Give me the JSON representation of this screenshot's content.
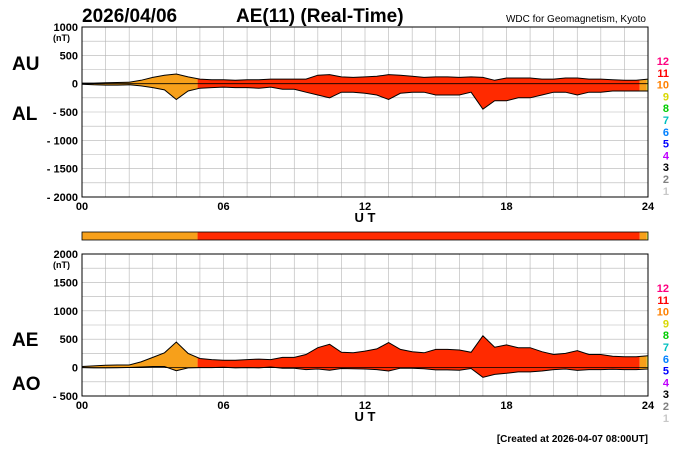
{
  "header": {
    "date": "2026/04/06",
    "title": "AE(11) (Real-Time)",
    "source": "WDC for Geomagnetism, Kyoto"
  },
  "footer": {
    "created": "[Created at 2026-04-07 08:00UT]"
  },
  "station_colors": [
    "#ff0080",
    "#ff0000",
    "#ff8000",
    "#d8d800",
    "#00cc00",
    "#00c0c0",
    "#0080ff",
    "#0000ff",
    "#c000ff",
    "#000000",
    "#808080",
    "#c8c8c8"
  ],
  "chart_data": [
    {
      "type": "area",
      "panel": "AU/AL",
      "label_upper": "AU",
      "label_lower": "AL",
      "ylabel_unit": "(nT)",
      "xlabel": "U T",
      "x_ticks": [
        "00",
        "06",
        "12",
        "18",
        "24"
      ],
      "y_ticks": [
        "1000",
        "500",
        "0",
        "- 500",
        "- 1000",
        "- 1500",
        "- 2000"
      ],
      "y_tick_values": [
        1000,
        500,
        0,
        -500,
        -1000,
        -1500,
        -2000
      ],
      "ylim": [
        -2000,
        1000
      ],
      "xlim": [
        0,
        24
      ],
      "grid": true,
      "station_count_scale": [
        "12",
        "11",
        "10",
        "9",
        "8",
        "7",
        "6",
        "5",
        "4",
        "3",
        "2",
        "1"
      ],
      "hours": [
        0,
        0.5,
        1,
        1.5,
        2,
        2.5,
        3,
        3.5,
        4,
        4.5,
        5,
        5.5,
        6,
        6.5,
        7,
        7.5,
        8,
        8.5,
        9,
        9.5,
        10,
        10.5,
        11,
        11.5,
        12,
        12.5,
        13,
        13.5,
        14,
        14.5,
        15,
        15.5,
        16,
        16.5,
        17,
        17.5,
        18,
        18.5,
        19,
        19.5,
        20,
        20.5,
        21,
        21.5,
        22,
        22.5,
        23,
        23.5,
        24
      ],
      "series": [
        {
          "name": "AU",
          "values": [
            10,
            10,
            15,
            20,
            25,
            60,
            110,
            150,
            170,
            120,
            80,
            70,
            70,
            60,
            70,
            70,
            80,
            80,
            80,
            80,
            150,
            160,
            120,
            110,
            120,
            130,
            160,
            150,
            130,
            110,
            120,
            120,
            110,
            120,
            110,
            60,
            100,
            100,
            100,
            80,
            80,
            100,
            100,
            80,
            80,
            70,
            60,
            60,
            80
          ]
        },
        {
          "name": "AL",
          "values": [
            -10,
            -20,
            -25,
            -25,
            -20,
            -40,
            -70,
            -110,
            -280,
            -130,
            -80,
            -70,
            -60,
            -70,
            -70,
            -80,
            -60,
            -100,
            -100,
            -150,
            -200,
            -250,
            -150,
            -150,
            -170,
            -200,
            -280,
            -170,
            -150,
            -150,
            -200,
            -200,
            -200,
            -150,
            -450,
            -300,
            -300,
            -250,
            -250,
            -200,
            -150,
            -150,
            -200,
            -150,
            -150,
            -130,
            -130,
            -130,
            -130
          ]
        }
      ],
      "segments": [
        {
          "from": 0,
          "to": 4.9,
          "color": "#f7a01a",
          "stations": "10"
        },
        {
          "from": 4.9,
          "to": 23.65,
          "color": "#ff2a00",
          "stations": "11"
        },
        {
          "from": 23.65,
          "to": 23.95,
          "color": "#f7a01a",
          "stations": "10"
        },
        {
          "from": 23.95,
          "to": 24,
          "color": "#c8e640",
          "stations": "9"
        }
      ]
    },
    {
      "type": "area",
      "panel": "AE/AO",
      "label_upper": "AE",
      "label_lower": "AO",
      "ylabel_unit": "(nT)",
      "xlabel": "U T",
      "x_ticks": [
        "00",
        "06",
        "12",
        "18",
        "24"
      ],
      "y_ticks": [
        "2000",
        "1500",
        "1000",
        "500",
        "0",
        "- 500"
      ],
      "y_tick_values": [
        2000,
        1500,
        1000,
        500,
        0,
        -500
      ],
      "ylim": [
        -500,
        2000
      ],
      "xlim": [
        0,
        24
      ],
      "grid": true,
      "station_count_scale": [
        "12",
        "11",
        "10",
        "9",
        "8",
        "7",
        "6",
        "5",
        "4",
        "3",
        "2",
        "1"
      ],
      "hours": [
        0,
        0.5,
        1,
        1.5,
        2,
        2.5,
        3,
        3.5,
        4,
        4.5,
        5,
        5.5,
        6,
        6.5,
        7,
        7.5,
        8,
        8.5,
        9,
        9.5,
        10,
        10.5,
        11,
        11.5,
        12,
        12.5,
        13,
        13.5,
        14,
        14.5,
        15,
        15.5,
        16,
        16.5,
        17,
        17.5,
        18,
        18.5,
        19,
        19.5,
        20,
        20.5,
        21,
        21.5,
        22,
        22.5,
        23,
        23.5,
        24
      ],
      "series": [
        {
          "name": "AE",
          "values": [
            20,
            30,
            40,
            45,
            45,
            100,
            180,
            260,
            450,
            250,
            160,
            140,
            130,
            130,
            140,
            150,
            140,
            180,
            180,
            230,
            350,
            410,
            270,
            260,
            290,
            330,
            440,
            320,
            280,
            260,
            320,
            320,
            310,
            270,
            560,
            360,
            400,
            350,
            350,
            280,
            230,
            250,
            300,
            230,
            230,
            200,
            190,
            190,
            210
          ]
        },
        {
          "name": "AO",
          "values": [
            0,
            -5,
            -5,
            -2,
            2,
            10,
            20,
            20,
            -55,
            -5,
            0,
            0,
            5,
            -5,
            0,
            -5,
            10,
            -10,
            -10,
            -35,
            -25,
            -45,
            -15,
            -20,
            -25,
            -35,
            -60,
            -10,
            -10,
            -20,
            -40,
            -40,
            -45,
            -15,
            -170,
            -120,
            -100,
            -75,
            -75,
            -60,
            -35,
            -25,
            -50,
            -35,
            -35,
            -30,
            -35,
            -35,
            -25
          ]
        }
      ],
      "segments": [
        {
          "from": 0,
          "to": 4.9,
          "color": "#f7a01a",
          "stations": "10"
        },
        {
          "from": 4.9,
          "to": 23.65,
          "color": "#ff2a00",
          "stations": "11"
        },
        {
          "from": 23.65,
          "to": 23.95,
          "color": "#f7a01a",
          "stations": "10"
        },
        {
          "from": 23.95,
          "to": 24,
          "color": "#c8e640",
          "stations": "9"
        }
      ]
    }
  ]
}
